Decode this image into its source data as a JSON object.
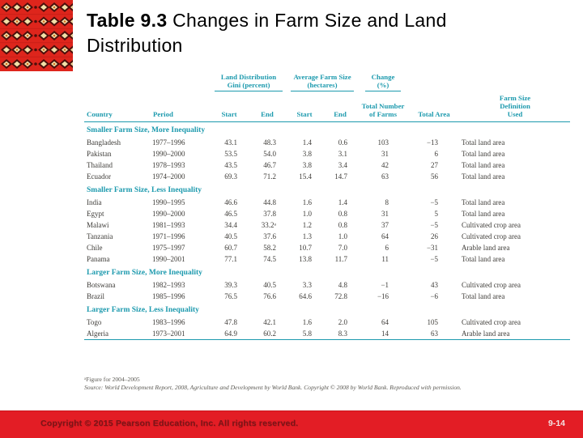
{
  "slide": {
    "title": {
      "prefix": "Table 9.3",
      "rest": " Changes in Farm Size and Land Distribution"
    }
  },
  "table": {
    "group_headers": {
      "gini": "Land Distribution Gini (percent)",
      "avg_farm_size": "Average Farm Size (hectares)",
      "change": "Change (%)"
    },
    "column_headers": [
      "Country",
      "Period",
      "Start",
      "End",
      "Start",
      "End",
      "Total Number of Farms",
      "Total Area",
      "Farm Size Definition Used"
    ],
    "sections": [
      {
        "label": "Smaller Farm Size, More Inequality",
        "rows": [
          [
            "Bangladesh",
            "1977–1996",
            "43.1",
            "48.3",
            "1.4",
            "0.6",
            "103",
            "−13",
            "Total land area"
          ],
          [
            "Pakistan",
            "1990–2000",
            "53.5",
            "54.0",
            "3.8",
            "3.1",
            "31",
            "6",
            "Total land area"
          ],
          [
            "Thailand",
            "1978–1993",
            "43.5",
            "46.7",
            "3.8",
            "3.4",
            "42",
            "27",
            "Total land area"
          ],
          [
            "Ecuador",
            "1974–2000",
            "69.3",
            "71.2",
            "15.4",
            "14.7",
            "63",
            "56",
            "Total land area"
          ]
        ]
      },
      {
        "label": "Smaller Farm Size, Less Inequality",
        "rows": [
          [
            "India",
            "1990–1995",
            "46.6",
            "44.8",
            "1.6",
            "1.4",
            "8",
            "−5",
            "Total land area"
          ],
          [
            "Egypt",
            "1990–2000",
            "46.5",
            "37.8",
            "1.0",
            "0.8",
            "31",
            "5",
            "Total land area"
          ],
          [
            "Malawi",
            "1981–1993",
            "34.4",
            "33.2ᵃ",
            "1.2",
            "0.8",
            "37",
            "−5",
            "Cultivated crop area"
          ],
          [
            "Tanzania",
            "1971–1996",
            "40.5",
            "37.6",
            "1.3",
            "1.0",
            "64",
            "26",
            "Cultivated crop area"
          ],
          [
            "Chile",
            "1975–1997",
            "60.7",
            "58.2",
            "10.7",
            "7.0",
            "6",
            "−31",
            "Arable land area"
          ],
          [
            "Panama",
            "1990–2001",
            "77.1",
            "74.5",
            "13.8",
            "11.7",
            "11",
            "−5",
            "Total land area"
          ]
        ]
      },
      {
        "label": "Larger Farm Size, More Inequality",
        "rows": [
          [
            "Botswana",
            "1982–1993",
            "39.3",
            "40.5",
            "3.3",
            "4.8",
            "−1",
            "43",
            "Cultivated crop area"
          ],
          [
            "Brazil",
            "1985–1996",
            "76.5",
            "76.6",
            "64.6",
            "72.8",
            "−16",
            "−6",
            "Total land area"
          ]
        ]
      },
      {
        "label": "Larger Farm Size, Less Inequality",
        "rows": [
          [
            "Togo",
            "1983–1996",
            "47.8",
            "42.1",
            "1.6",
            "2.0",
            "64",
            "105",
            "Cultivated crop area"
          ],
          [
            "Algeria",
            "1973–2001",
            "64.9",
            "60.2",
            "5.8",
            "8.3",
            "14",
            "63",
            "Arable land area"
          ]
        ]
      }
    ],
    "footnote": "ᵃFigure for 2004–2005",
    "source": "Source: World Development Report, 2008, Agriculture and Development by World Bank. Copyright © 2008 by World Bank. Reproduced with permission."
  },
  "footer": {
    "copyright": "Copyright © 2015 Pearson Education, Inc. All rights reserved.",
    "page_number": "9-14"
  },
  "colors": {
    "accent_teal": "#1d9aae",
    "footer_red": "#e31d25",
    "ornament_red": "#de251c"
  }
}
